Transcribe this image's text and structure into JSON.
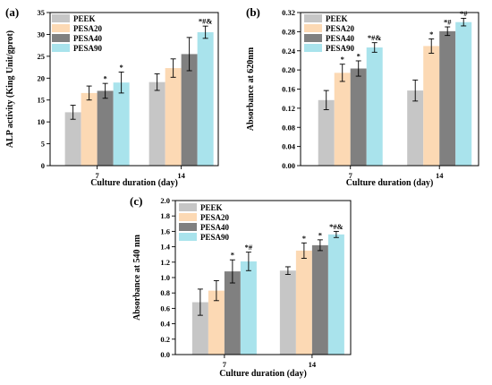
{
  "series_colors": {
    "PEEK": "#c6c6c6",
    "PESA20": "#fcd9b4",
    "PESA40": "#808080",
    "PESA90": "#a9e3ec"
  },
  "chart_data": [
    {
      "type": "bar",
      "panel_label": "(a)",
      "xlabel": "Culture duration (day)",
      "ylabel": "ALP activity (King Unit/gprot)",
      "categories": [
        "7",
        "14"
      ],
      "ylim": [
        0,
        35
      ],
      "yticks": [
        0,
        5,
        10,
        15,
        20,
        25,
        30,
        35
      ],
      "ytick_labels": [
        "0",
        "5",
        "10",
        "15",
        "20",
        "25",
        "30",
        "35"
      ],
      "grid": false,
      "legend_position": "top-left",
      "series": [
        {
          "name": "PEEK",
          "values": [
            12.2,
            19.1
          ],
          "errors": [
            1.6,
            1.9
          ],
          "labels": [
            "",
            ""
          ]
        },
        {
          "name": "PESA20",
          "values": [
            16.6,
            22.3
          ],
          "errors": [
            1.6,
            2.1
          ],
          "labels": [
            "",
            ""
          ]
        },
        {
          "name": "PESA40",
          "values": [
            17.1,
            25.5
          ],
          "errors": [
            1.7,
            3.8
          ],
          "labels": [
            "*",
            ""
          ]
        },
        {
          "name": "PESA90",
          "values": [
            19.0,
            30.5
          ],
          "errors": [
            2.4,
            1.4
          ],
          "labels": [
            "*",
            "*#&"
          ]
        }
      ]
    },
    {
      "type": "bar",
      "panel_label": "(b)",
      "xlabel": "Culture duration (day)",
      "ylabel": "Absorbance at 620nm",
      "categories": [
        "7",
        "14"
      ],
      "ylim": [
        0,
        0.32
      ],
      "yticks": [
        0,
        0.04,
        0.08,
        0.12,
        0.16,
        0.2,
        0.24,
        0.28,
        0.32
      ],
      "ytick_labels": [
        "0.00",
        "0.04",
        "0.08",
        "0.12",
        "0.16",
        "0.20",
        "0.24",
        "0.28",
        "0.32"
      ],
      "grid": false,
      "legend_position": "top-left",
      "series": [
        {
          "name": "PEEK",
          "values": [
            0.137,
            0.157
          ],
          "errors": [
            0.02,
            0.022
          ],
          "labels": [
            "",
            ""
          ]
        },
        {
          "name": "PESA20",
          "values": [
            0.194,
            0.25
          ],
          "errors": [
            0.018,
            0.015
          ],
          "labels": [
            "*",
            "*"
          ]
        },
        {
          "name": "PESA40",
          "values": [
            0.203,
            0.281
          ],
          "errors": [
            0.016,
            0.009
          ],
          "labels": [
            "*",
            "*#"
          ]
        },
        {
          "name": "PESA90",
          "values": [
            0.247,
            0.3
          ],
          "errors": [
            0.01,
            0.008
          ],
          "labels": [
            "*#&",
            "*#"
          ]
        }
      ]
    },
    {
      "type": "bar",
      "panel_label": "(c)",
      "xlabel": "Culture duration (day)",
      "ylabel": "Absorbance at 540 nm",
      "categories": [
        "7",
        "14"
      ],
      "ylim": [
        0,
        2.0
      ],
      "yticks": [
        0,
        0.2,
        0.4,
        0.6,
        0.8,
        1.0,
        1.2,
        1.4,
        1.6,
        1.8,
        2.0
      ],
      "ytick_labels": [
        "0.0",
        "0.2",
        "0.4",
        "0.6",
        "0.8",
        "1.0",
        "1.2",
        "1.4",
        "1.6",
        "1.8",
        "2.0"
      ],
      "grid": false,
      "legend_position": "top-left",
      "series": [
        {
          "name": "PEEK",
          "values": [
            0.68,
            1.09
          ],
          "errors": [
            0.17,
            0.05
          ],
          "labels": [
            "",
            ""
          ]
        },
        {
          "name": "PESA20",
          "values": [
            0.83,
            1.35
          ],
          "errors": [
            0.13,
            0.1
          ],
          "labels": [
            "",
            "*"
          ]
        },
        {
          "name": "PESA40",
          "values": [
            1.08,
            1.42
          ],
          "errors": [
            0.15,
            0.07
          ],
          "labels": [
            "*",
            "*"
          ]
        },
        {
          "name": "PESA90",
          "values": [
            1.21,
            1.56
          ],
          "errors": [
            0.12,
            0.04
          ],
          "labels": [
            "*#",
            "*#&"
          ]
        }
      ]
    }
  ]
}
